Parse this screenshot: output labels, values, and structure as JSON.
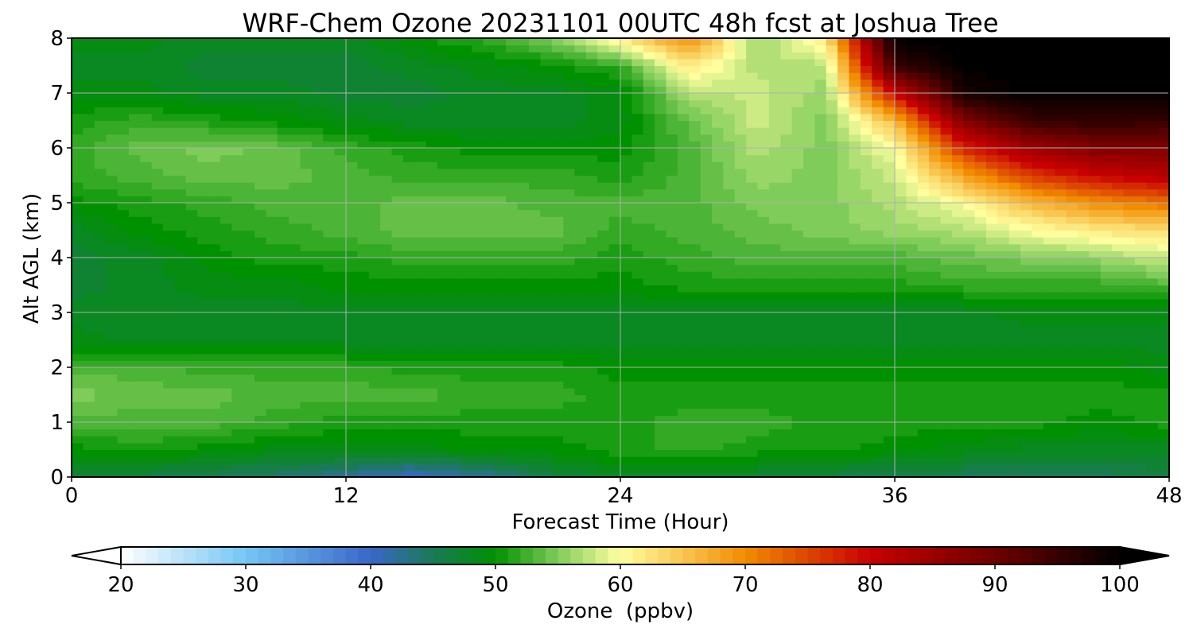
{
  "chart_data": {
    "type": "heatmap",
    "title": "WRF-Chem Ozone  20231101 00UTC 48h fcst at Joshua Tree",
    "xlabel": "Forecast Time (Hour)",
    "ylabel": "Alt AGL (km)",
    "xlim": [
      0,
      48
    ],
    "ylim": [
      0,
      8
    ],
    "x_ticks": [
      0,
      12,
      24,
      36,
      48
    ],
    "y_ticks": [
      0,
      1,
      2,
      3,
      4,
      5,
      6,
      7,
      8
    ],
    "grid": true,
    "colorbar": {
      "label": "Ozone  (ppbv)",
      "range": [
        20,
        100
      ],
      "ticks": [
        20,
        30,
        40,
        50,
        60,
        70,
        80,
        90,
        100
      ],
      "extend": "both",
      "stops": [
        {
          "value": 20,
          "color": "#ffffff"
        },
        {
          "value": 30,
          "color": "#74c6f4"
        },
        {
          "value": 40,
          "color": "#3a66c8"
        },
        {
          "value": 45,
          "color": "#1a7a55"
        },
        {
          "value": 50,
          "color": "#009100"
        },
        {
          "value": 55,
          "color": "#7fcc5a"
        },
        {
          "value": 60,
          "color": "#ffffa0"
        },
        {
          "value": 70,
          "color": "#f28c00"
        },
        {
          "value": 80,
          "color": "#c80000"
        },
        {
          "value": 90,
          "color": "#6e0000"
        },
        {
          "value": 100,
          "color": "#000000"
        }
      ]
    },
    "x": [
      0,
      3,
      6,
      9,
      12,
      15,
      18,
      21,
      24,
      27,
      30,
      33,
      36,
      39,
      42,
      45,
      48
    ],
    "altitudes_km": [
      0,
      0.5,
      1,
      1.5,
      2,
      2.5,
      3,
      3.5,
      4,
      4.5,
      5,
      5.5,
      6,
      6.5,
      7,
      7.5,
      8
    ],
    "values_ppbv": [
      [
        46,
        46,
        45,
        44,
        42,
        40,
        42,
        46,
        48,
        48,
        47,
        46,
        45,
        45,
        44,
        45,
        46
      ],
      [
        50,
        51,
        50,
        49,
        49,
        49,
        50,
        50,
        51,
        52,
        51,
        51,
        50,
        49,
        48,
        48,
        48
      ],
      [
        53,
        53,
        53,
        52,
        51,
        51,
        51,
        51,
        51,
        52,
        52,
        51,
        51,
        51,
        51,
        50,
        51
      ],
      [
        55,
        54,
        54,
        53,
        53,
        53,
        52,
        52,
        51,
        51,
        51,
        51,
        51,
        51,
        51,
        51,
        51
      ],
      [
        53,
        53,
        52,
        52,
        52,
        51,
        51,
        51,
        50,
        50,
        50,
        50,
        50,
        50,
        50,
        50,
        49
      ],
      [
        49,
        48,
        48,
        48,
        48,
        48,
        48,
        48,
        48,
        48,
        48,
        48,
        48,
        48,
        48,
        48,
        48
      ],
      [
        48,
        48,
        48,
        48,
        48,
        48,
        48,
        48,
        48,
        48,
        48,
        48,
        48,
        48,
        49,
        49,
        49
      ],
      [
        47,
        48,
        49,
        49,
        50,
        50,
        50,
        50,
        50,
        51,
        51,
        51,
        51,
        52,
        52,
        52,
        53
      ],
      [
        47,
        48,
        50,
        51,
        51,
        52,
        52,
        52,
        51,
        52,
        53,
        53,
        53,
        54,
        55,
        56,
        58
      ],
      [
        48,
        50,
        51,
        52,
        53,
        54,
        54,
        54,
        52,
        53,
        54,
        55,
        56,
        57,
        60,
        62,
        63
      ],
      [
        50,
        51,
        52,
        53,
        53,
        54,
        54,
        53,
        53,
        53,
        55,
        55,
        57,
        60,
        66,
        70,
        72
      ],
      [
        52,
        53,
        54,
        54,
        53,
        52,
        52,
        52,
        51,
        53,
        56,
        55,
        58,
        68,
        76,
        80,
        82
      ],
      [
        52,
        54,
        55,
        54,
        52,
        51,
        50,
        50,
        50,
        53,
        57,
        55,
        60,
        77,
        85,
        88,
        88
      ],
      [
        51,
        52,
        51,
        50,
        49,
        48,
        48,
        48,
        49,
        54,
        58,
        55,
        66,
        88,
        95,
        96,
        95
      ],
      [
        49,
        49,
        48,
        48,
        47,
        47,
        48,
        48,
        49,
        57,
        58,
        56,
        80,
        98,
        100,
        100,
        100
      ],
      [
        48,
        48,
        47,
        47,
        47,
        48,
        49,
        50,
        52,
        62,
        57,
        57,
        95,
        100,
        100,
        100,
        100
      ],
      [
        49,
        49,
        48,
        48,
        48,
        50,
        52,
        55,
        62,
        70,
        56,
        62,
        100,
        100,
        100,
        100,
        100
      ]
    ]
  }
}
